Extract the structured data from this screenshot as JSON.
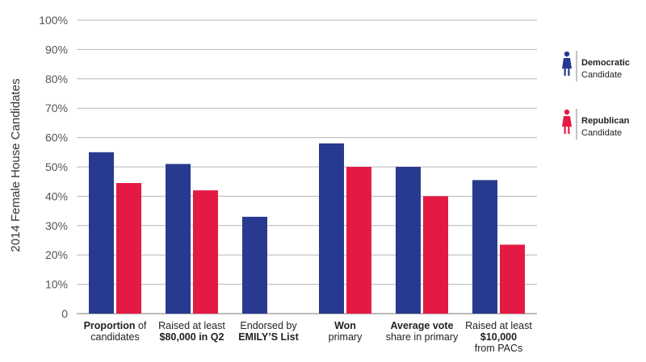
{
  "chart_data": {
    "type": "bar",
    "ylabel": "2014 Female House Candidates",
    "ylim": [
      0,
      100
    ],
    "y_ticks": [
      "0",
      "10%",
      "20%",
      "30%",
      "40%",
      "50%",
      "60%",
      "70%",
      "80%",
      "90%",
      "100%"
    ],
    "grid": true,
    "categories": [
      {
        "lines": [
          [
            {
              "t": "Proportion",
              "b": true
            },
            {
              "t": " of",
              "b": false
            }
          ],
          [
            {
              "t": "candidates",
              "b": false
            }
          ]
        ]
      },
      {
        "lines": [
          [
            {
              "t": "Raised at least",
              "b": false
            }
          ],
          [
            {
              "t": "$80,000 in Q2",
              "b": true
            }
          ]
        ]
      },
      {
        "lines": [
          [
            {
              "t": "Endorsed by",
              "b": false
            }
          ],
          [
            {
              "t": "EMILY’S List",
              "b": true
            }
          ]
        ]
      },
      {
        "lines": [
          [
            {
              "t": "Won",
              "b": true
            }
          ],
          [
            {
              "t": "primary",
              "b": false
            }
          ]
        ]
      },
      {
        "lines": [
          [
            {
              "t": "Average vote",
              "b": true
            }
          ],
          [
            {
              "t": "share in primary",
              "b": false
            }
          ]
        ]
      },
      {
        "lines": [
          [
            {
              "t": "Raised at least",
              "b": false
            }
          ],
          [
            {
              "t": "$10,000",
              "b": true
            }
          ],
          [
            {
              "t": "from PACs",
              "b": false
            }
          ]
        ]
      }
    ],
    "series": [
      {
        "color": "#283a8f",
        "values": [
          55,
          51,
          33,
          58,
          50,
          45.5
        ]
      },
      {
        "color": "#e51a44",
        "values": [
          44.5,
          42,
          null,
          50,
          40,
          23.5
        ]
      }
    ],
    "legend": {
      "position": "right",
      "items": [
        {
          "bold": "Democratic",
          "normal": "Candidate",
          "color": "#283a8f"
        },
        {
          "bold": "Republican",
          "normal": "Candidate",
          "color": "#e51a44"
        }
      ]
    }
  }
}
